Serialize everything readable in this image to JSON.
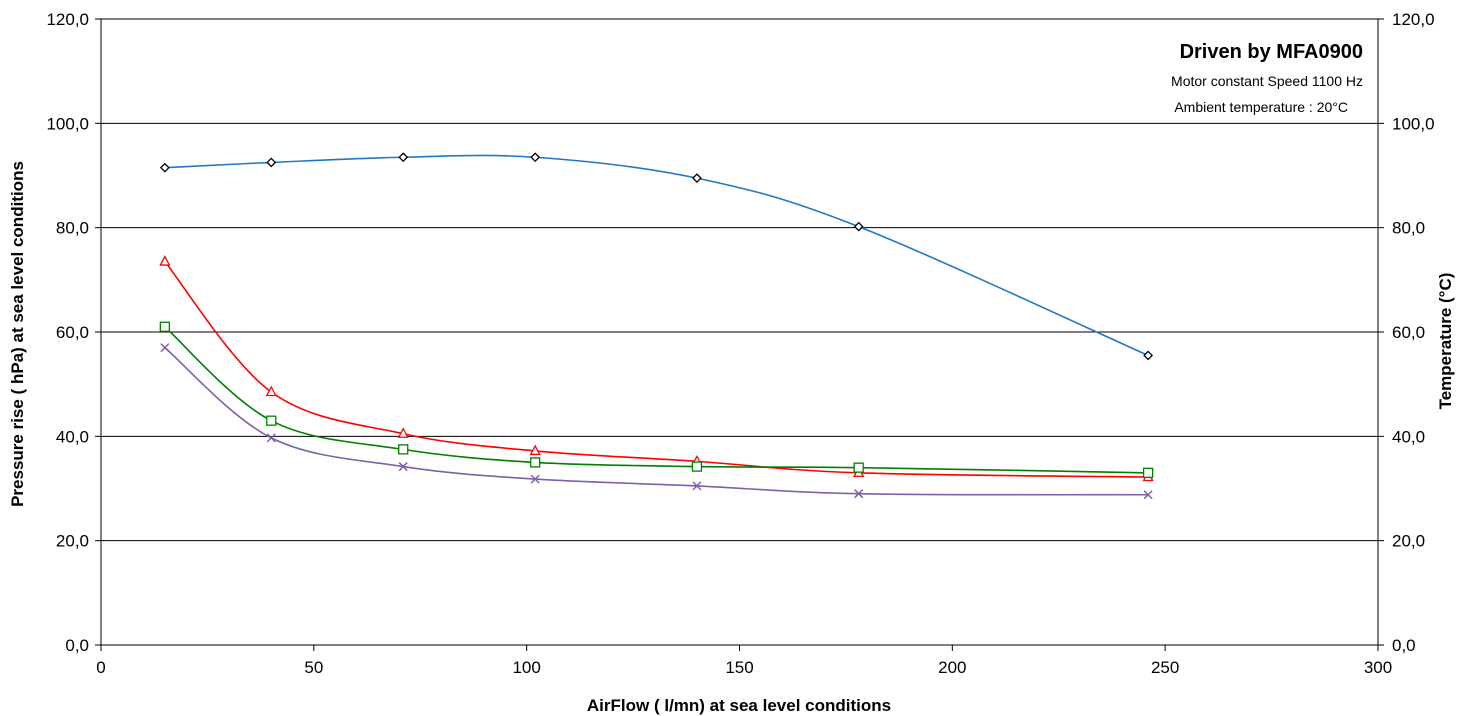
{
  "chart_data": {
    "type": "line",
    "title": "",
    "xlabel": "AirFlow ( l/mn) at sea level conditions",
    "ylabel_left": "Pressure rise ( hPa) at sea level conditions",
    "ylabel_right": "Temperature  (°C)",
    "xlim": [
      0,
      300
    ],
    "ylim_left": [
      0,
      120
    ],
    "ylim_right": [
      0,
      120
    ],
    "x_ticks": [
      0,
      50,
      100,
      150,
      200,
      250,
      300
    ],
    "x_tick_labels": [
      "0",
      "50",
      "100",
      "150",
      "200",
      "250",
      "300"
    ],
    "y_ticks": [
      0,
      20,
      40,
      60,
      80,
      100,
      120
    ],
    "y_tick_labels_left": [
      "0,0",
      "20,0",
      "40,0",
      "60,0",
      "80,0",
      "100,0",
      "120,0"
    ],
    "y_tick_labels_right": [
      "0,0",
      "20,0",
      "40,0",
      "60,0",
      "80,0",
      "100,0",
      "120,0"
    ],
    "grid": "horizontal",
    "annotations": {
      "title": "Driven by MFA0900",
      "line1": "Motor constant Speed 1100 Hz",
      "line2": "Ambient temperature  : 20°C"
    },
    "series": [
      {
        "color": "#1f77c8",
        "marker": "diamond",
        "marker_color": "#000000",
        "x": [
          15,
          40,
          71,
          102,
          140,
          178,
          246
        ],
        "y": [
          91.5,
          92.5,
          93.5,
          93.5,
          89.5,
          80.2,
          55.5
        ]
      },
      {
        "color": "#ff0000",
        "marker": "triangle",
        "marker_color": "#ff0000",
        "x": [
          15,
          40,
          71,
          102,
          140,
          178,
          246
        ],
        "y": [
          73.5,
          48.5,
          40.5,
          37.2,
          35.2,
          33.0,
          32.2
        ]
      },
      {
        "color": "#008000",
        "marker": "square",
        "marker_color": "#008000",
        "x": [
          15,
          40,
          71,
          102,
          140,
          178,
          246
        ],
        "y": [
          61.0,
          43.0,
          37.5,
          35.0,
          34.2,
          34.0,
          33.0
        ]
      },
      {
        "color": "#7f5fa8",
        "marker": "x",
        "marker_color": "#7f5fa8",
        "x": [
          15,
          40,
          71,
          102,
          140,
          178,
          246
        ],
        "y": [
          57.0,
          39.7,
          34.2,
          31.8,
          30.5,
          29.0,
          28.8
        ]
      }
    ]
  }
}
